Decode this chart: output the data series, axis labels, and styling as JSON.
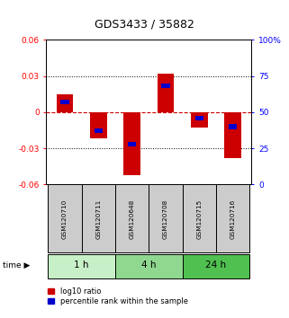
{
  "title": "GDS3433 / 35882",
  "samples": [
    "GSM120710",
    "GSM120711",
    "GSM120648",
    "GSM120708",
    "GSM120715",
    "GSM120716"
  ],
  "time_groups": [
    {
      "label": "1 h",
      "start": 0,
      "end": 2,
      "color": "#c8f0c8"
    },
    {
      "label": "4 h",
      "start": 2,
      "end": 4,
      "color": "#90d890"
    },
    {
      "label": "24 h",
      "start": 4,
      "end": 6,
      "color": "#50c050"
    }
  ],
  "log10_ratio": [
    0.015,
    -0.022,
    -0.052,
    0.032,
    -0.013,
    -0.038
  ],
  "percentile_rank": [
    0.57,
    0.37,
    0.28,
    0.68,
    0.46,
    0.4
  ],
  "ylim": [
    -0.06,
    0.06
  ],
  "yticks_left": [
    -0.06,
    -0.03,
    0,
    0.03,
    0.06
  ],
  "yticks_right": [
    0,
    25,
    50,
    75,
    100
  ],
  "bar_color": "#cc0000",
  "percentile_color": "#0000cc",
  "zero_line_color": "#cc0000",
  "grid_color": "#000000",
  "bg_color": "#ffffff",
  "sample_box_color": "#cccccc",
  "bar_width": 0.5,
  "percentile_bar_width": 0.25,
  "percentile_bar_height": 0.004,
  "legend_items": [
    "log10 ratio",
    "percentile rank within the sample"
  ]
}
